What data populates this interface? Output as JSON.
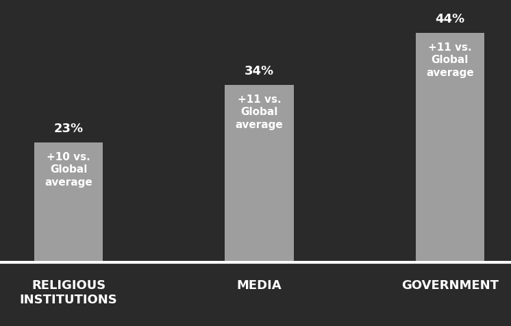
{
  "chart_data": {
    "type": "bar",
    "categories": [
      "RELIGIOUS INSTITUTIONS",
      "MEDIA",
      "GOVERNMENT"
    ],
    "values": [
      23,
      34,
      44
    ],
    "value_labels": [
      "23%",
      "34%",
      "44%"
    ],
    "data_labels": true,
    "annotations": [
      "+10 vs. Global average",
      "+11 vs. Global average",
      "+11 vs. Global average"
    ],
    "color": "#9e9e9e",
    "ylim": [
      0,
      49
    ],
    "tick_labels": "x"
  }
}
